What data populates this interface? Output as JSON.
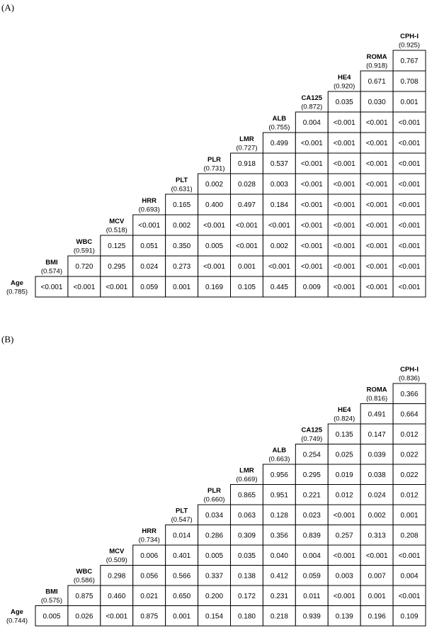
{
  "panels": [
    {
      "label": "(A)",
      "variables": [
        {
          "name": "Age",
          "auc": "(0.785)"
        },
        {
          "name": "BMI",
          "auc": "(0.574)"
        },
        {
          "name": "WBC",
          "auc": "(0.591)"
        },
        {
          "name": "MCV",
          "auc": "(0.518)"
        },
        {
          "name": "HRR",
          "auc": "(0.693)"
        },
        {
          "name": "PLT",
          "auc": "(0.631)"
        },
        {
          "name": "PLR",
          "auc": "(0.731)"
        },
        {
          "name": "LMR",
          "auc": "(0.727)"
        },
        {
          "name": "ALB",
          "auc": "(0.755)"
        },
        {
          "name": "CA125",
          "auc": "(0.872)"
        },
        {
          "name": "HE4",
          "auc": "(0.920)"
        },
        {
          "name": "ROMA",
          "auc": "(0.918)"
        },
        {
          "name": "CPH-I",
          "auc": "(0.925)"
        }
      ],
      "rows": [
        [
          "<0.001",
          "<0.001",
          "<0.001",
          "0.059",
          "0.001",
          "0.169",
          "0.105",
          "0.445",
          "0.009",
          "<0.001",
          "<0.001",
          "<0.001"
        ],
        [
          "0.720",
          "0.295",
          "0.024",
          "0.273",
          "<0.001",
          "0.001",
          "<0.001",
          "<0.001",
          "<0.001",
          "<0.001",
          "<0.001"
        ],
        [
          "0.125",
          "0.051",
          "0.350",
          "0.005",
          "<0.001",
          "0.002",
          "<0.001",
          "<0.001",
          "<0.001",
          "<0.001"
        ],
        [
          "<0.001",
          "0.002",
          "<0.001",
          "<0.001",
          "<0.001",
          "<0.001",
          "<0.001",
          "<0.001",
          "<0.001"
        ],
        [
          "0.165",
          "0.400",
          "0.497",
          "0.184",
          "<0.001",
          "<0.001",
          "<0.001",
          "<0.001"
        ],
        [
          "0.002",
          "0.028",
          "0.003",
          "<0.001",
          "<0.001",
          "<0.001",
          "<0.001"
        ],
        [
          "0.918",
          "0.537",
          "<0.001",
          "<0.001",
          "<0.001",
          "<0.001"
        ],
        [
          "0.499",
          "<0.001",
          "<0.001",
          "<0.001",
          "<0.001"
        ],
        [
          "0.004",
          "<0.001",
          "<0.001",
          "<0.001"
        ],
        [
          "0.035",
          "0.030",
          "0.001"
        ],
        [
          "0.671",
          "0.708"
        ],
        [
          "0.767"
        ]
      ]
    },
    {
      "label": "(B)",
      "variables": [
        {
          "name": "Age",
          "auc": "(0.744)"
        },
        {
          "name": "BMI",
          "auc": "(0.575)"
        },
        {
          "name": "WBC",
          "auc": "(0.586)"
        },
        {
          "name": "MCV",
          "auc": "(0.509)"
        },
        {
          "name": "HRR",
          "auc": "(0.734)"
        },
        {
          "name": "PLT",
          "auc": "(0.547)"
        },
        {
          "name": "PLR",
          "auc": "(0.660)"
        },
        {
          "name": "LMR",
          "auc": "(0.669)"
        },
        {
          "name": "ALB",
          "auc": "(0.663)"
        },
        {
          "name": "CA125",
          "auc": "(0.749)"
        },
        {
          "name": "HE4",
          "auc": "(0.824)"
        },
        {
          "name": "ROMA",
          "auc": "(0.816)"
        },
        {
          "name": "CPH-I",
          "auc": "(0.836)"
        }
      ],
      "rows": [
        [
          "0.005",
          "0.026",
          "<0.001",
          "0.875",
          "0.001",
          "0.154",
          "0.180",
          "0.218",
          "0.939",
          "0.139",
          "0.196",
          "0.109"
        ],
        [
          "0.875",
          "0.460",
          "0.021",
          "0.650",
          "0.200",
          "0.172",
          "0.231",
          "0.011",
          "<0.001",
          "0.001",
          "<0.001"
        ],
        [
          "0.298",
          "0.056",
          "0.566",
          "0.337",
          "0.138",
          "0.412",
          "0.059",
          "0.003",
          "0.007",
          "0.004"
        ],
        [
          "0.006",
          "0.401",
          "0.005",
          "0.035",
          "0.040",
          "0.004",
          "<0.001",
          "<0.001",
          "<0.001"
        ],
        [
          "0.014",
          "0.286",
          "0.309",
          "0.356",
          "0.839",
          "0.257",
          "0.313",
          "0.208"
        ],
        [
          "0.034",
          "0.063",
          "0.128",
          "0.023",
          "<0.001",
          "0.002",
          "0.001"
        ],
        [
          "0.865",
          "0.951",
          "0.221",
          "0.012",
          "0.024",
          "0.012"
        ],
        [
          "0.956",
          "0.295",
          "0.019",
          "0.038",
          "0.022"
        ],
        [
          "0.254",
          "0.025",
          "0.039",
          "0.022"
        ],
        [
          "0.135",
          "0.147",
          "0.012"
        ],
        [
          "0.491",
          "0.664"
        ],
        [
          "0.366"
        ]
      ]
    }
  ]
}
